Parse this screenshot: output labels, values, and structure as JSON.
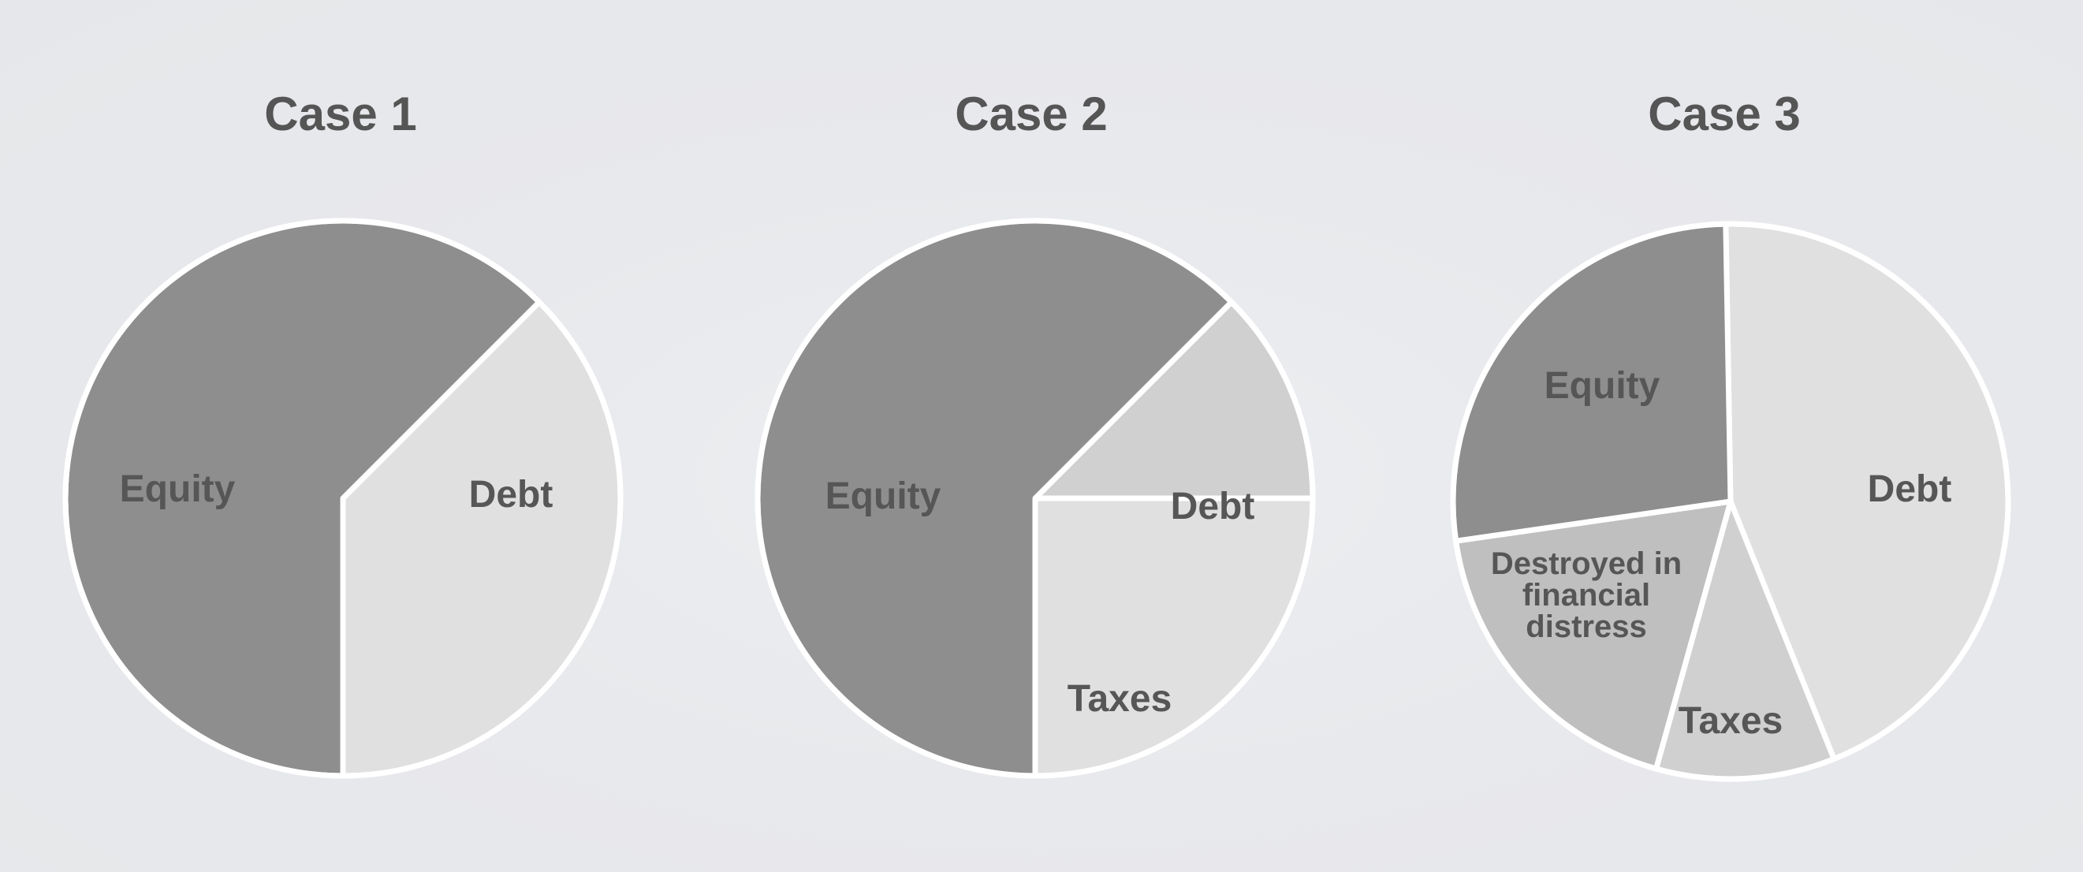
{
  "chart_data": [
    {
      "type": "pie",
      "title": "Case 1",
      "slices": [
        {
          "label": "Debt",
          "value": 37.5,
          "color": "#e0e0e0"
        },
        {
          "label": "Equity",
          "value": 62.5,
          "color": "#8e8e8e"
        }
      ]
    },
    {
      "type": "pie",
      "title": "Case 2",
      "slices": [
        {
          "label": "Debt",
          "value": 25,
          "color": "#e0e0e0"
        },
        {
          "label": "Taxes",
          "value": 12.5,
          "color": "#d0d0d0"
        },
        {
          "label": "Equity",
          "value": 62.5,
          "color": "#8e8e8e"
        }
      ]
    },
    {
      "type": "pie",
      "title": "Case 3",
      "slices": [
        {
          "label": "Debt",
          "value": 44.2,
          "color": "#e0e0e0"
        },
        {
          "label": "Taxes",
          "value": 10.4,
          "color": "#d0d0d0"
        },
        {
          "label": "Destroyed in financial distress",
          "value": 18.4,
          "color": "#bfbfbf"
        },
        {
          "label": "Equity",
          "value": 27.0,
          "color": "#8e8e8e"
        }
      ]
    }
  ]
}
